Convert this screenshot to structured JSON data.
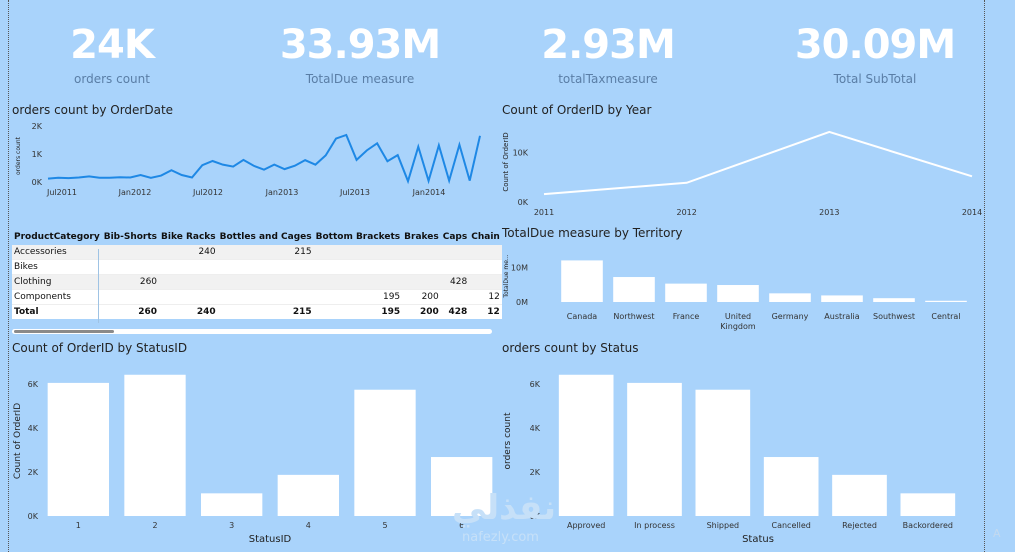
{
  "kpis": [
    {
      "value": "24K",
      "label": "orders count"
    },
    {
      "value": "33.93M",
      "label": "TotalDue measure"
    },
    {
      "value": "2.93M",
      "label": "totalTaxmeasure"
    },
    {
      "value": "30.09M",
      "label": "Total SubTotal"
    }
  ],
  "watermark": {
    "brand": "نفذلي",
    "site": "nafezly.com"
  },
  "corner_glyph": "A",
  "colors": {
    "background": "#a9d3fb",
    "line_blue": "#1e88e5",
    "white": "#ffffff",
    "label_blue": "#5a7ea6"
  },
  "chart_data": [
    {
      "type": "line",
      "title": "orders count by OrderDate",
      "ylabel": "orders count",
      "xlabel": "",
      "ylim": [
        0,
        2000
      ],
      "yticks": [
        "0K",
        "1K",
        "2K"
      ],
      "xtick_labels": [
        "Jul2011",
        "Jan2012",
        "Jul2012",
        "Jan2013",
        "Jul2013",
        "Jan2014"
      ],
      "series": [
        {
          "values": [
            120,
            150,
            140,
            160,
            200,
            150,
            150,
            170,
            160,
            250,
            150,
            230,
            420,
            250,
            160,
            600,
            750,
            620,
            550,
            790,
            580,
            440,
            620,
            460,
            580,
            780,
            620,
            950,
            1550,
            1680,
            790,
            1130,
            1380,
            740,
            960,
            30,
            1260,
            40,
            1310,
            50,
            1330,
            50,
            1650
          ]
        }
      ]
    },
    {
      "type": "line",
      "title": "Count of OrderID by Year",
      "ylabel": "Count of OrderID",
      "xlabel": "",
      "ylim": [
        0,
        15000
      ],
      "yticks": [
        "0K",
        "10K"
      ],
      "categories": [
        "2011",
        "2012",
        "2013",
        "2014"
      ],
      "values": [
        1600,
        3900,
        14200,
        5200
      ]
    },
    {
      "type": "table",
      "columns": [
        "ProductCategory",
        "Bib-Shorts",
        "Bike Racks",
        "Bottles and Cages",
        "Bottom Brackets",
        "Brakes",
        "Caps",
        "Chain"
      ],
      "rows": [
        [
          "Accessories",
          "",
          "240",
          "215",
          "",
          "",
          "",
          ""
        ],
        [
          "Bikes",
          "",
          "",
          "",
          "",
          "",
          "",
          ""
        ],
        [
          "Clothing",
          "260",
          "",
          "",
          "",
          "",
          "428",
          ""
        ],
        [
          "Components",
          "",
          "",
          "",
          "195",
          "200",
          "",
          "12"
        ]
      ],
      "total": [
        "Total",
        "260",
        "240",
        "215",
        "195",
        "200",
        "428",
        "12"
      ]
    },
    {
      "type": "bar",
      "title": "TotalDue measure by Territory",
      "ylabel": "TotalDue me...",
      "xlabel": "",
      "ylim": [
        0,
        15000000
      ],
      "yticks": [
        "0M",
        "10M"
      ],
      "categories": [
        "Canada",
        "Northwest",
        "France",
        "United Kingdom",
        "Germany",
        "Australia",
        "Southwest",
        "Central"
      ],
      "values": [
        12000000,
        7200000,
        5300000,
        4900000,
        2500000,
        1900000,
        1100000,
        350000
      ]
    },
    {
      "type": "bar",
      "title": "Count of OrderID by StatusID",
      "ylabel": "Count of OrderID",
      "xlabel": "StatusID",
      "ylim": [
        0,
        7000
      ],
      "yticks": [
        "0K",
        "2K",
        "4K",
        "6K"
      ],
      "categories": [
        "1",
        "2",
        "3",
        "4",
        "5",
        "6"
      ],
      "values": [
        6050,
        6420,
        1030,
        1870,
        5740,
        2680
      ]
    },
    {
      "type": "bar",
      "title": "orders count by Status",
      "ylabel": "orders count",
      "xlabel": "Status",
      "ylim": [
        0,
        7000
      ],
      "yticks": [
        "0K",
        "2K",
        "4K",
        "6K"
      ],
      "categories": [
        "Approved",
        "In process",
        "Shipped",
        "Cancelled",
        "Rejected",
        "Backordered"
      ],
      "values": [
        6420,
        6050,
        5740,
        2680,
        1870,
        1030
      ]
    }
  ]
}
